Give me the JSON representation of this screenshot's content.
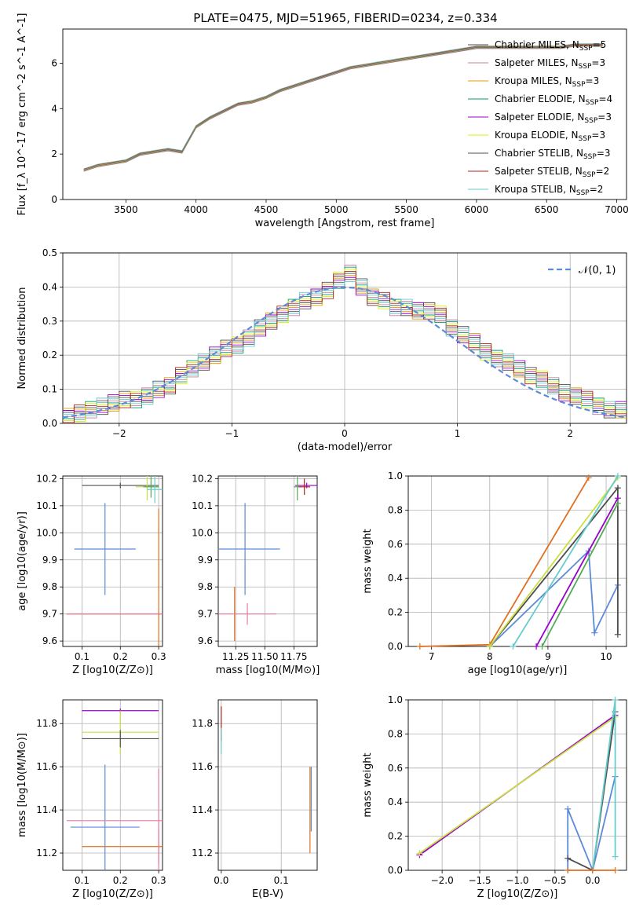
{
  "figure_title": "PLATE=0475, MJD=51965, FIBERID=0234, z=0.334",
  "series_colors": [
    "#4d4d4d",
    "#cc79a7",
    "#e69f00",
    "#009e73",
    "#9900cc",
    "#d9f000",
    "#505050",
    "#b22222",
    "#66cccc"
  ],
  "legend_labels": [
    {
      "name": "Chabrier MILES",
      "n": "5"
    },
    {
      "name": "Salpeter MILES",
      "n": "3"
    },
    {
      "name": "Kroupa MILES",
      "n": "3"
    },
    {
      "name": "Chabrier ELODIE",
      "n": "4"
    },
    {
      "name": "Salpeter ELODIE",
      "n": "3"
    },
    {
      "name": "Kroupa ELODIE",
      "n": "3"
    },
    {
      "name": "Chabrier STELIB",
      "n": "3"
    },
    {
      "name": "Salpeter STELIB",
      "n": "2"
    },
    {
      "name": "Kroupa STELIB",
      "n": "2"
    }
  ],
  "chart_data": [
    {
      "type": "line",
      "title": "PLATE=0475, MJD=51965, FIBERID=0234, z=0.334",
      "xlabel": "wavelength [Angstrom, rest frame]",
      "ylabel": "Flux [f_λ 10^-17 erg cm^-2 s^-1 A^-1]",
      "xlim": [
        3050,
        7070
      ],
      "ylim": [
        0,
        7.5
      ],
      "xticks": [
        "3500",
        "4000",
        "4500",
        "5000",
        "5500",
        "6000",
        "6500",
        "7000"
      ],
      "yticks": [
        "0",
        "2",
        "4",
        "6"
      ],
      "data_color": "#808080",
      "spectrum_x": [
        3200,
        3300,
        3400,
        3500,
        3600,
        3700,
        3800,
        3900,
        4000,
        4100,
        4200,
        4300,
        4400,
        4500,
        4600,
        4700,
        4800,
        4900,
        5000,
        5100,
        5200,
        5300,
        5400,
        5500,
        5600,
        5700,
        5800,
        5900,
        6000,
        6100,
        6200,
        6300,
        6400,
        6500,
        6600,
        6700,
        6800,
        6900
      ],
      "spectrum_y": [
        1.3,
        1.5,
        1.6,
        1.7,
        2.0,
        2.1,
        2.2,
        2.1,
        3.2,
        3.6,
        3.9,
        4.2,
        4.3,
        4.5,
        4.8,
        5.0,
        5.2,
        5.4,
        5.6,
        5.8,
        5.9,
        6.0,
        6.1,
        6.2,
        6.3,
        6.4,
        6.5,
        6.6,
        6.7,
        6.7,
        6.7,
        6.7,
        6.7,
        6.7,
        6.7,
        6.8,
        6.8,
        6.8
      ],
      "legend_position": "upper right"
    },
    {
      "type": "line",
      "xlabel": "(data-model)/error",
      "ylabel": "Normed distribution",
      "xlim": [
        -2.5,
        2.5
      ],
      "ylim": [
        0,
        0.5
      ],
      "xticks": [
        "−2",
        "−1",
        "0",
        "1",
        "2"
      ],
      "yticks": [
        "0.0",
        "0.1",
        "0.2",
        "0.3",
        "0.4",
        "0.5"
      ],
      "gaussian_label": "𝒩(0, 1)",
      "gaussian_color": "#5b8bd9",
      "histogram_bins": [
        -2.5,
        -2.4,
        -2.3,
        -2.2,
        -2.1,
        -2.0,
        -1.9,
        -1.8,
        -1.7,
        -1.6,
        -1.5,
        -1.4,
        -1.3,
        -1.2,
        -1.1,
        -1.0,
        -0.9,
        -0.8,
        -0.7,
        -0.6,
        -0.5,
        -0.4,
        -0.3,
        -0.2,
        -0.1,
        0.0,
        0.1,
        0.2,
        0.3,
        0.4,
        0.5,
        0.6,
        0.7,
        0.8,
        0.9,
        1.0,
        1.1,
        1.2,
        1.3,
        1.4,
        1.5,
        1.6,
        1.7,
        1.8,
        1.9,
        2.0,
        2.1,
        2.2,
        2.3,
        2.4,
        2.5
      ],
      "histogram_values": [
        0.02,
        0.03,
        0.04,
        0.05,
        0.06,
        0.07,
        0.07,
        0.08,
        0.1,
        0.11,
        0.14,
        0.16,
        0.18,
        0.2,
        0.22,
        0.23,
        0.25,
        0.28,
        0.3,
        0.32,
        0.34,
        0.36,
        0.37,
        0.39,
        0.42,
        0.44,
        0.4,
        0.37,
        0.36,
        0.34,
        0.34,
        0.33,
        0.33,
        0.32,
        0.28,
        0.26,
        0.24,
        0.21,
        0.19,
        0.18,
        0.16,
        0.14,
        0.13,
        0.11,
        0.09,
        0.08,
        0.07,
        0.05,
        0.04,
        0.04
      ],
      "legend_position": "upper right"
    },
    {
      "type": "scatter",
      "xlabel": "Z [log10(Z/Z⊙)]",
      "ylabel": "age  [log10(age/yr)]",
      "xlim": [
        0.05,
        0.31
      ],
      "ylim": [
        9.58,
        10.21
      ],
      "xticks": [
        "0.1",
        "0.2",
        "0.3"
      ],
      "yticks": [
        "9.6",
        "9.7",
        "9.8",
        "9.9",
        "10.0",
        "10.1",
        "10.2"
      ],
      "points": [
        {
          "x": 0.16,
          "y": 9.94,
          "xerr": 0.08,
          "yerr": 0.17,
          "c": "#5b8bd9"
        },
        {
          "x": 0.3,
          "y": 9.7,
          "xerr": 0.24,
          "yerr": 0.39,
          "c": "#e07020"
        },
        {
          "x": 0.3,
          "y": 9.7,
          "xerr": 0.24,
          "yerr": 0.0,
          "c": "#e57aa0"
        },
        {
          "x": 0.2,
          "y": 10.175,
          "xerr": 0.1,
          "yerr": 0.01,
          "c": "#505050"
        },
        {
          "x": 0.27,
          "y": 10.17,
          "xerr": 0.03,
          "yerr": 0.05,
          "c": "#c8e040"
        },
        {
          "x": 0.28,
          "y": 10.17,
          "xerr": 0.02,
          "yerr": 0.04,
          "c": "#55aa55"
        },
        {
          "x": 0.29,
          "y": 10.16,
          "xerr": 0.02,
          "yerr": 0.05,
          "c": "#66cccc"
        }
      ]
    },
    {
      "type": "scatter",
      "xlabel": "mass [log10(M/M⊙)]",
      "ylabel": "",
      "xlim": [
        11.1,
        11.95
      ],
      "ylim": [
        9.58,
        10.21
      ],
      "xticks": [
        "11.25",
        "11.50",
        "11.75"
      ],
      "yticks": [
        "9.6",
        "9.7",
        "9.8",
        "9.9",
        "10.0",
        "10.1",
        "10.2"
      ],
      "points": [
        {
          "x": 11.33,
          "y": 9.94,
          "xerr": 0.3,
          "yerr": 0.17,
          "c": "#5b8bd9"
        },
        {
          "x": 11.24,
          "y": 9.7,
          "xerr": 0.0,
          "yerr": 0.1,
          "c": "#e07020"
        },
        {
          "x": 11.35,
          "y": 9.7,
          "xerr": 0.25,
          "yerr": 0.04,
          "c": "#e57aa0"
        },
        {
          "x": 11.86,
          "y": 10.175,
          "xerr": 0.1,
          "yerr": 0.01,
          "c": "#9900cc"
        },
        {
          "x": 11.78,
          "y": 10.17,
          "xerr": 0.03,
          "yerr": 0.05,
          "c": "#55aa55"
        },
        {
          "x": 11.84,
          "y": 10.17,
          "xerr": 0.05,
          "yerr": 0.03,
          "c": "#b22222"
        }
      ]
    },
    {
      "type": "line",
      "xlabel": "age  [log10(age/yr)]",
      "ylabel": "mass weight",
      "xlim": [
        6.6,
        10.35
      ],
      "ylim": [
        0,
        1
      ],
      "xticks": [
        "7",
        "8",
        "9",
        "10"
      ],
      "yticks": [
        "0.0",
        "0.2",
        "0.4",
        "0.6",
        "0.8",
        "1.0"
      ],
      "series": [
        {
          "c": "#e07020",
          "x": [
            6.8,
            8.0,
            9.7
          ],
          "y": [
            0.0,
            0.01,
            0.99
          ]
        },
        {
          "c": "#5b8bd9",
          "x": [
            8.0,
            9.7,
            9.8,
            10.2
          ],
          "y": [
            0.0,
            0.56,
            0.08,
            0.36
          ]
        },
        {
          "c": "#4d4d4d",
          "x": [
            8.0,
            10.2,
            10.2
          ],
          "y": [
            0.0,
            0.93,
            0.07
          ]
        },
        {
          "c": "#9900cc",
          "x": [
            8.8,
            10.2
          ],
          "y": [
            0.0,
            0.87
          ]
        },
        {
          "c": "#c8e040",
          "x": [
            8.0,
            10.2
          ],
          "y": [
            0.0,
            0.99
          ]
        },
        {
          "c": "#55aa55",
          "x": [
            8.9,
            10.2
          ],
          "y": [
            0.0,
            0.84
          ]
        },
        {
          "c": "#66cccc",
          "x": [
            8.4,
            10.2
          ],
          "y": [
            0.0,
            1.0
          ]
        }
      ]
    },
    {
      "type": "scatter",
      "xlabel": "Z [log10(Z/Z⊙)]",
      "ylabel": "mass [log10(M/M⊙)]",
      "xlim": [
        0.05,
        0.31
      ],
      "ylim": [
        11.12,
        11.91
      ],
      "xticks": [
        "0.1",
        "0.2",
        "0.3"
      ],
      "yticks": [
        "11.2",
        "11.4",
        "11.6",
        "11.8"
      ],
      "points": [
        {
          "x": 0.16,
          "y": 11.32,
          "xerr": 0.09,
          "yerr": 0.29,
          "c": "#5b8bd9"
        },
        {
          "x": 0.3,
          "y": 11.23,
          "xerr": 0.2,
          "yerr": 0.08,
          "c": "#e07020"
        },
        {
          "x": 0.3,
          "y": 11.35,
          "xerr": 0.24,
          "yerr": 0.24,
          "c": "#e57aa0"
        },
        {
          "x": 0.2,
          "y": 11.86,
          "xerr": 0.1,
          "yerr": 0.01,
          "c": "#9900cc"
        },
        {
          "x": 0.2,
          "y": 11.76,
          "xerr": 0.1,
          "yerr": 0.1,
          "c": "#c8e040"
        },
        {
          "x": 0.2,
          "y": 11.73,
          "xerr": 0.1,
          "yerr": 0.04,
          "c": "#505050"
        }
      ]
    },
    {
      "type": "scatter",
      "xlabel": "E(B-V)",
      "ylabel": "",
      "xlim": [
        -0.005,
        0.16
      ],
      "ylim": [
        11.12,
        11.91
      ],
      "xticks": [
        "0.0",
        "0.1"
      ],
      "yticks": [
        "11.2",
        "11.4",
        "11.6",
        "11.8"
      ],
      "points": [
        {
          "x": 0.0,
          "y": 11.8,
          "xerr": 0.0,
          "yerr": 0.08,
          "c": "#b22222"
        },
        {
          "x": 0.0,
          "y": 11.72,
          "xerr": 0.0,
          "yerr": 0.06,
          "c": "#66cccc"
        },
        {
          "x": 0.15,
          "y": 11.45,
          "xerr": 0.0,
          "yerr": 0.15,
          "c": "#5b8bd9"
        },
        {
          "x": 0.148,
          "y": 11.4,
          "xerr": 0.0,
          "yerr": 0.2,
          "c": "#e07020"
        }
      ]
    },
    {
      "type": "line",
      "xlabel": "Z [log10(Z/Z⊙)]",
      "ylabel": "mass weight",
      "xlim": [
        -2.45,
        0.45
      ],
      "ylim": [
        0,
        1
      ],
      "xticks": [
        "−2.0",
        "−1.5",
        "−1.0",
        "−0.5",
        "0.0"
      ],
      "yticks": [
        "0.0",
        "0.2",
        "0.4",
        "0.6",
        "0.8",
        "1.0"
      ],
      "series": [
        {
          "c": "#9900cc",
          "x": [
            -2.3,
            0.3
          ],
          "y": [
            0.09,
            0.91
          ]
        },
        {
          "c": "#c8e040",
          "x": [
            -2.3,
            0.3
          ],
          "y": [
            0.1,
            0.9
          ]
        },
        {
          "c": "#5b8bd9",
          "x": [
            -0.33,
            -0.33,
            0.0,
            0.3
          ],
          "y": [
            0.0,
            0.36,
            0.0,
            0.55
          ]
        },
        {
          "c": "#4d4d4d",
          "x": [
            -0.33,
            0.0,
            0.3
          ],
          "y": [
            0.07,
            0.0,
            0.93
          ]
        },
        {
          "c": "#66cccc",
          "x": [
            0.0,
            0.3,
            0.3
          ],
          "y": [
            0.0,
            1.0,
            0.08
          ]
        },
        {
          "c": "#e07020",
          "x": [
            -0.33,
            0.0,
            0.3
          ],
          "y": [
            0.0,
            0.0,
            0.0
          ]
        }
      ]
    }
  ]
}
